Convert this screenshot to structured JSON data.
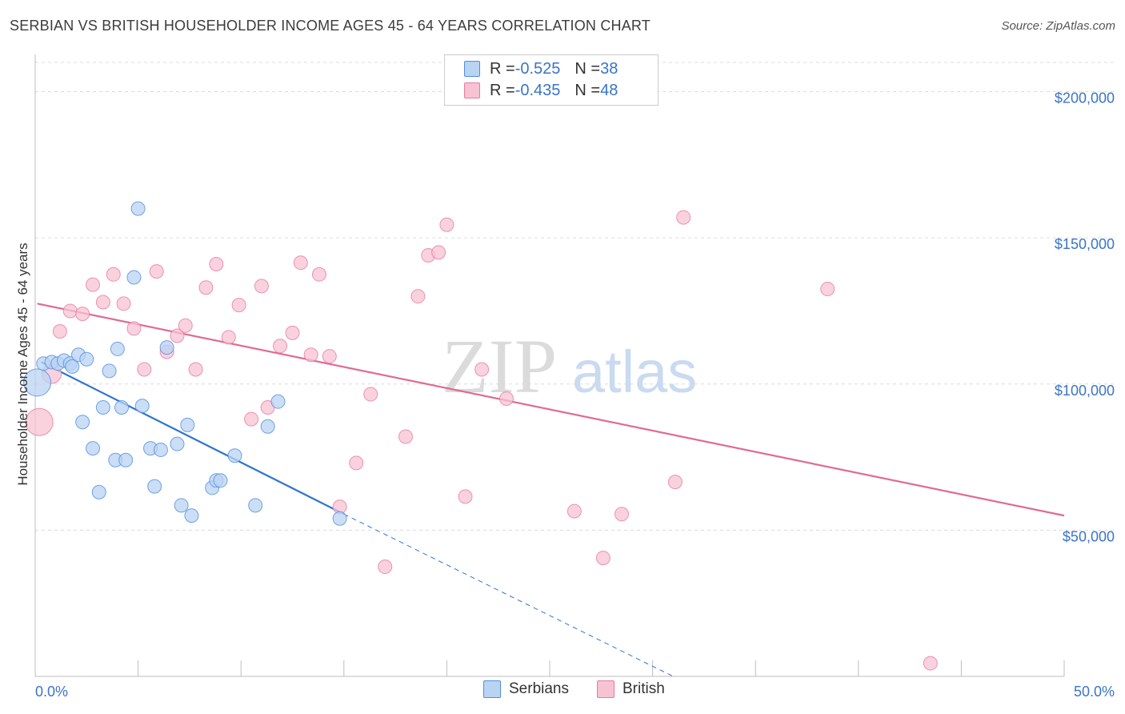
{
  "title": "SERBIAN VS BRITISH HOUSEHOLDER INCOME AGES 45 - 64 YEARS CORRELATION CHART",
  "source": "Source: ZipAtlas.com",
  "watermark": {
    "zip": "ZIP",
    "atlas": "atlas"
  },
  "legend": {
    "rows": [
      {
        "r_label": "R = ",
        "r_value": "-0.525",
        "n_label": "N = ",
        "n_value": "38",
        "color": "#4f8ee0"
      },
      {
        "r_label": "R = ",
        "r_value": "-0.435",
        "n_label": "N = ",
        "n_value": "48",
        "color": "#e87aa0"
      }
    ]
  },
  "bottom_legend": {
    "serbians": "Serbians",
    "british": "British"
  },
  "chart_data": {
    "type": "scatter",
    "xlabel": "",
    "ylabel": "Householder Income Ages 45 - 64 years",
    "xlim": [
      0,
      50
    ],
    "ylim": [
      0,
      210000
    ],
    "x_tick_labels": {
      "min": "0.0%",
      "max": "50.0%"
    },
    "y_ticks": [
      {
        "value": 50000,
        "label": "$50,000"
      },
      {
        "value": 100000,
        "label": "$100,000"
      },
      {
        "value": 150000,
        "label": "$150,000"
      },
      {
        "value": 200000,
        "label": "$200,000"
      }
    ],
    "grid": "horizontal dashed",
    "series": [
      {
        "name": "Serbians",
        "color": "#4f8ee0",
        "fill": "#b9d3f3",
        "r": -0.525,
        "n": 38,
        "trend": {
          "x": [
            0.3,
            15
          ],
          "y": [
            107500,
            55500
          ],
          "dashed_to": [
            31,
            0
          ]
        },
        "points": [
          [
            0.1,
            100500,
            3
          ],
          [
            0.4,
            107000,
            1
          ],
          [
            0.8,
            107500,
            1
          ],
          [
            1.1,
            107000,
            1
          ],
          [
            1.4,
            108000,
            1
          ],
          [
            1.7,
            107000,
            1
          ],
          [
            1.8,
            106000,
            1
          ],
          [
            2.1,
            110000,
            1
          ],
          [
            2.5,
            108500,
            1
          ],
          [
            2.3,
            87000,
            1
          ],
          [
            2.8,
            78000,
            1
          ],
          [
            3.1,
            63000,
            1
          ],
          [
            3.3,
            92000,
            1
          ],
          [
            3.6,
            104500,
            1
          ],
          [
            3.9,
            74000,
            1
          ],
          [
            4.0,
            112000,
            1
          ],
          [
            4.2,
            92000,
            1
          ],
          [
            4.4,
            74000,
            1
          ],
          [
            4.8,
            136500,
            1
          ],
          [
            5.0,
            160000,
            1
          ],
          [
            5.2,
            92500,
            1
          ],
          [
            5.6,
            78000,
            1
          ],
          [
            5.8,
            65000,
            1
          ],
          [
            6.1,
            77500,
            1
          ],
          [
            6.4,
            112500,
            1
          ],
          [
            6.9,
            79500,
            1
          ],
          [
            7.1,
            58500,
            1
          ],
          [
            7.4,
            86000,
            1
          ],
          [
            7.6,
            55000,
            1
          ],
          [
            8.6,
            64500,
            1
          ],
          [
            8.8,
            67000,
            1
          ],
          [
            9.0,
            67000,
            1
          ],
          [
            9.7,
            75500,
            1
          ],
          [
            10.7,
            58500,
            1
          ],
          [
            11.3,
            85500,
            1
          ],
          [
            11.8,
            94000,
            1
          ],
          [
            14.8,
            54000,
            1
          ]
        ]
      },
      {
        "name": "British",
        "color": "#e87aa0",
        "fill": "#f7c3d3",
        "r": -0.435,
        "n": 48,
        "trend": {
          "x": [
            0.1,
            50
          ],
          "y": [
            127500,
            55000
          ]
        },
        "points": [
          [
            0.2,
            87000,
            3
          ],
          [
            0.8,
            103500,
            2
          ],
          [
            1.2,
            118000,
            1
          ],
          [
            1.7,
            125000,
            1
          ],
          [
            2.3,
            124000,
            1
          ],
          [
            2.8,
            134000,
            1
          ],
          [
            3.3,
            128000,
            1
          ],
          [
            3.8,
            137500,
            1
          ],
          [
            4.3,
            127500,
            1
          ],
          [
            4.8,
            119000,
            1
          ],
          [
            5.3,
            105000,
            1
          ],
          [
            5.9,
            138500,
            1
          ],
          [
            6.4,
            111000,
            1
          ],
          [
            6.9,
            116500,
            1
          ],
          [
            7.3,
            120000,
            1
          ],
          [
            7.8,
            105000,
            1
          ],
          [
            8.3,
            133000,
            1
          ],
          [
            8.8,
            141000,
            1
          ],
          [
            9.4,
            116000,
            1
          ],
          [
            9.9,
            127000,
            1
          ],
          [
            10.5,
            88000,
            1
          ],
          [
            11.0,
            133500,
            1
          ],
          [
            11.3,
            92000,
            1
          ],
          [
            11.9,
            113000,
            1
          ],
          [
            12.5,
            117500,
            1
          ],
          [
            12.9,
            141500,
            1
          ],
          [
            13.4,
            110000,
            1
          ],
          [
            13.8,
            137500,
            1
          ],
          [
            14.3,
            109500,
            1
          ],
          [
            14.8,
            58000,
            1
          ],
          [
            15.6,
            73000,
            1
          ],
          [
            16.3,
            96500,
            1
          ],
          [
            17.0,
            37500,
            1
          ],
          [
            18.0,
            82000,
            1
          ],
          [
            18.6,
            130000,
            1
          ],
          [
            19.1,
            144000,
            1
          ],
          [
            19.6,
            145000,
            1
          ],
          [
            20.0,
            154500,
            1
          ],
          [
            20.9,
            61500,
            1
          ],
          [
            21.7,
            105000,
            1
          ],
          [
            22.9,
            95000,
            1
          ],
          [
            26.2,
            56500,
            1
          ],
          [
            27.6,
            40500,
            1
          ],
          [
            28.5,
            55500,
            1
          ],
          [
            31.1,
            66500,
            1
          ],
          [
            31.5,
            157000,
            1
          ],
          [
            38.5,
            132500,
            1
          ],
          [
            43.5,
            4500,
            1
          ]
        ]
      }
    ]
  }
}
